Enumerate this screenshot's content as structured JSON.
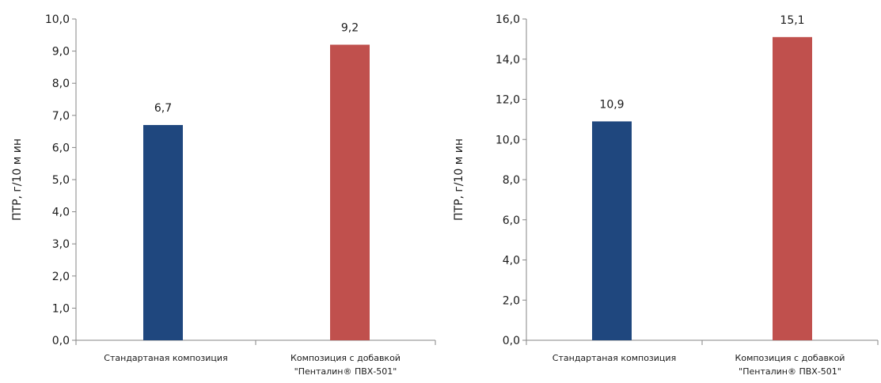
{
  "chart_data": [
    {
      "type": "bar",
      "categories": [
        [
          "Стандартаная   композиция"
        ],
        [
          "Композиция с добавкой",
          "\"Пенталин® ПВХ-501\""
        ]
      ],
      "values": [
        6.7,
        9.2
      ],
      "value_labels": [
        "6,7",
        "9,2"
      ],
      "colors": [
        "#1F477E",
        "#C0504D"
      ],
      "title": "",
      "xlabel": "",
      "ylabel": "ПТР, г/10 м ин",
      "ylim": [
        0,
        10
      ],
      "yticks": [
        "0,0",
        "1,0",
        "2,0",
        "3,0",
        "4,0",
        "5,0",
        "6,0",
        "7,0",
        "8,0",
        "9,0",
        "10,0"
      ],
      "grid": false,
      "legend": "none"
    },
    {
      "type": "bar",
      "categories": [
        [
          "Стандартаная   композиция"
        ],
        [
          "Композиция с добавкой",
          "\"Пенталин® ПВХ-501\""
        ]
      ],
      "values": [
        10.9,
        15.1
      ],
      "value_labels": [
        "10,9",
        "15,1"
      ],
      "colors": [
        "#1F477E",
        "#C0504D"
      ],
      "title": "",
      "xlabel": "",
      "ylabel": "ПТР, г/10 м ин",
      "ylim": [
        0,
        16
      ],
      "yticks": [
        "0,0",
        "2,0",
        "4,0",
        "6,0",
        "8,0",
        "10,0",
        "12,0",
        "14,0",
        "16,0"
      ],
      "grid": false,
      "legend": "none"
    }
  ]
}
